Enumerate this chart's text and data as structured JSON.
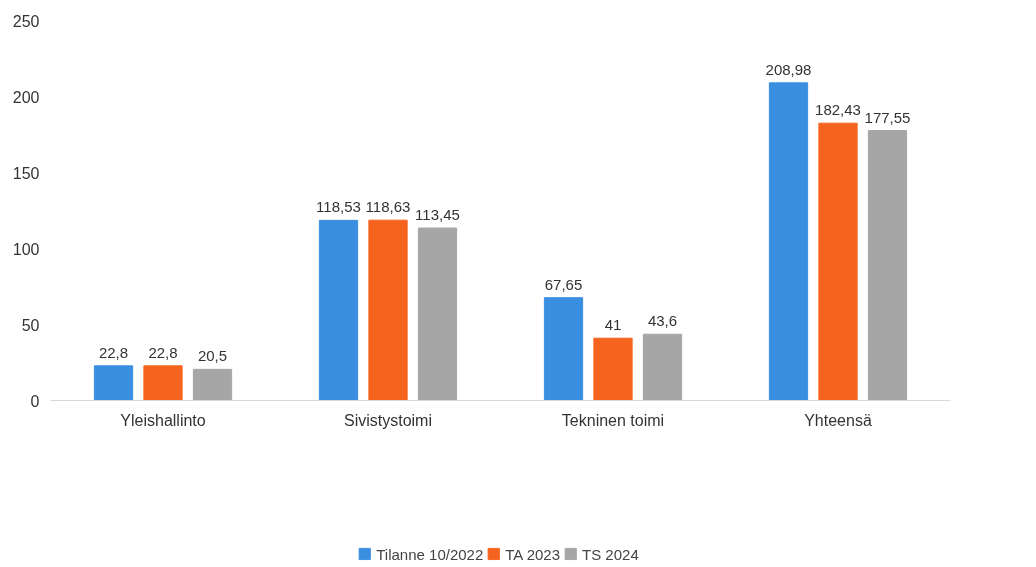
{
  "chart_data": {
    "type": "bar",
    "categories": [
      "Yleishallinto",
      "Sivistystoimi",
      "Tekninen toimi",
      "Yhteensä"
    ],
    "series": [
      {
        "name": "Tilanne 10/2022",
        "color": "#3b8fe0",
        "values": [
          22.8,
          118.53,
          67.65,
          208.98
        ],
        "value_labels": [
          "22,8",
          "118,53",
          "67,65",
          "208,98"
        ]
      },
      {
        "name": "TA 2023",
        "color": "#f5641e",
        "values": [
          22.8,
          118.63,
          41,
          182.43
        ],
        "value_labels": [
          "22,8",
          "118,63",
          "41",
          "182,43"
        ]
      },
      {
        "name": "TS 2024",
        "color": "#a6a6a6",
        "values": [
          20.5,
          113.45,
          43.6,
          177.55
        ],
        "value_labels": [
          "20,5",
          "113,45",
          "43,6",
          "177,55"
        ]
      }
    ],
    "ylim": [
      0,
      250
    ],
    "yticks": [
      0,
      50,
      100,
      150,
      200,
      250
    ],
    "grid": false,
    "legend": "bottom"
  }
}
